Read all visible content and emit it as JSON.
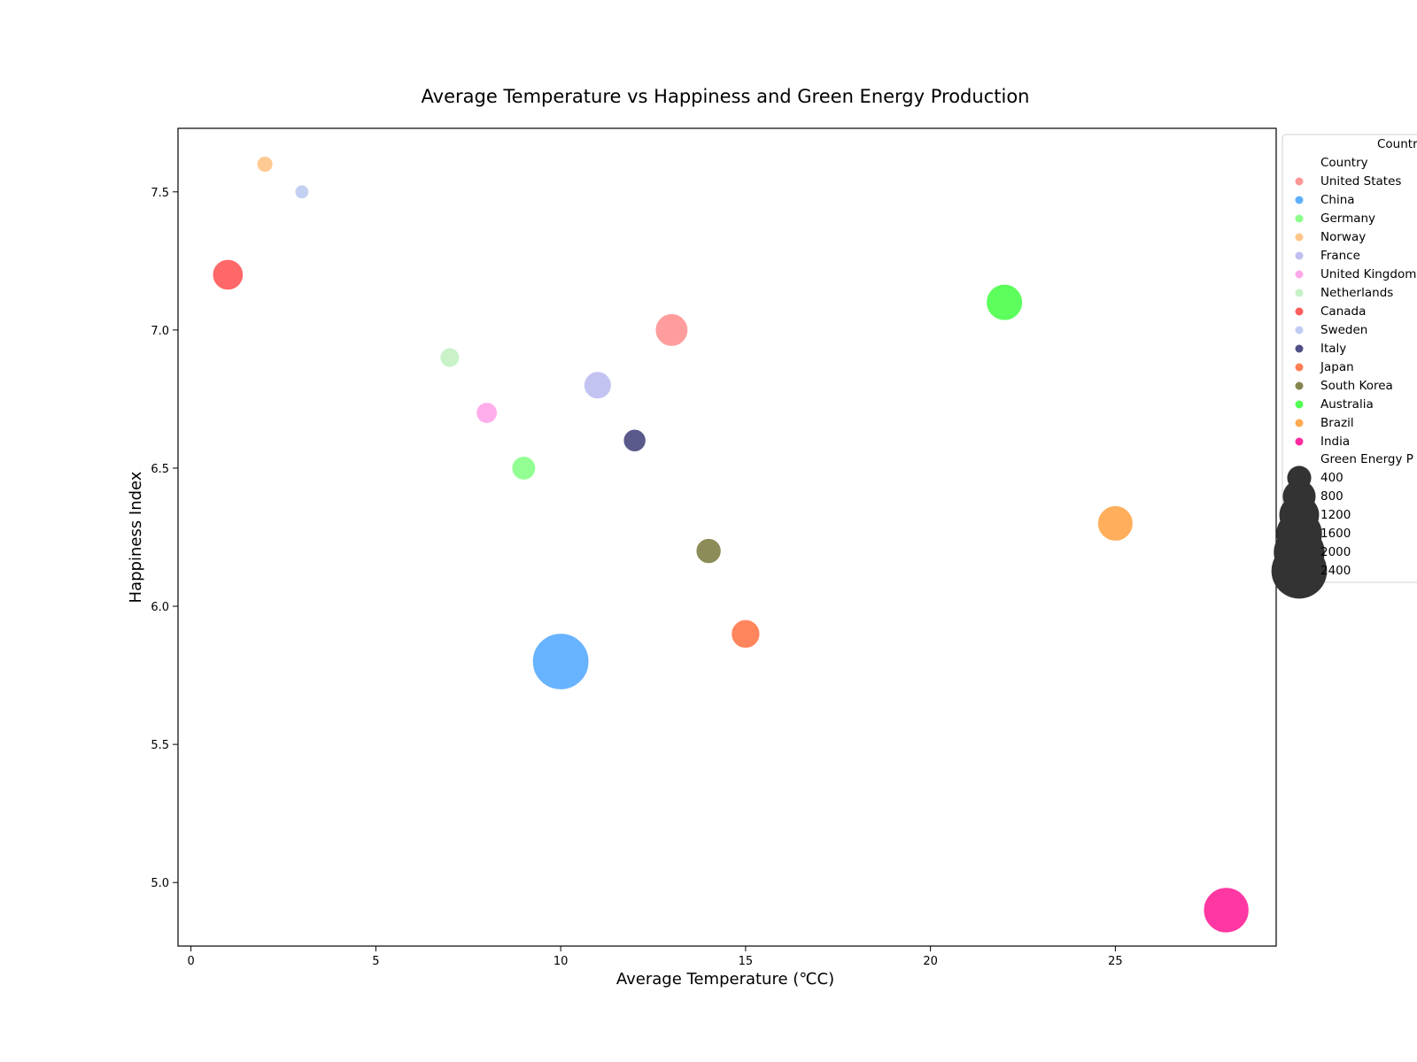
{
  "chart_data": {
    "type": "scatter",
    "title": "Average Temperature vs Happiness and Green Energy Production",
    "xlabel": "Average Temperature (℃C)",
    "ylabel": "Happiness Index",
    "xlim": [
      -0.35,
      29.35
    ],
    "ylim": [
      4.77,
      7.73
    ],
    "x_ticks": [
      0,
      5,
      10,
      15,
      20,
      25
    ],
    "y_ticks": [
      5.0,
      5.5,
      6.0,
      6.5,
      7.0,
      7.5
    ],
    "y_tick_labels": [
      "5.0",
      "5.5",
      "6.0",
      "6.5",
      "7.0",
      "7.5"
    ],
    "grid": false,
    "legend_position": "right-outside",
    "size_range_data": [
      100,
      2500
    ],
    "series": [
      {
        "name": "United States",
        "x": 13,
        "y": 7.0,
        "size": 800,
        "color": "#ff8c8c"
      },
      {
        "name": "China",
        "x": 10,
        "y": 5.8,
        "size": 2500,
        "color": "#4da6ff"
      },
      {
        "name": "Germany",
        "x": 9,
        "y": 6.5,
        "size": 400,
        "color": "#80ff80"
      },
      {
        "name": "Norway",
        "x": 2,
        "y": 7.6,
        "size": 150,
        "color": "#ffc080"
      },
      {
        "name": "France",
        "x": 11,
        "y": 6.8,
        "size": 550,
        "color": "#b8b8f0"
      },
      {
        "name": "United Kingdom",
        "x": 8,
        "y": 6.7,
        "size": 300,
        "color": "#ffa0e8"
      },
      {
        "name": "Netherlands",
        "x": 7,
        "y": 6.9,
        "size": 250,
        "color": "#bff0bf"
      },
      {
        "name": "Canada",
        "x": 1,
        "y": 7.2,
        "size": 700,
        "color": "#ff4d4d"
      },
      {
        "name": "Sweden",
        "x": 3,
        "y": 7.5,
        "size": 100,
        "color": "#b8c8f0"
      },
      {
        "name": "Italy",
        "x": 12,
        "y": 6.6,
        "size": 350,
        "color": "#3c3c78"
      },
      {
        "name": "Japan",
        "x": 15,
        "y": 5.9,
        "size": 600,
        "color": "#ff7040"
      },
      {
        "name": "South Korea",
        "x": 14,
        "y": 6.2,
        "size": 450,
        "color": "#78783c"
      },
      {
        "name": "Australia",
        "x": 22,
        "y": 7.1,
        "size": 1000,
        "color": "#40ff40"
      },
      {
        "name": "Brazil",
        "x": 25,
        "y": 6.3,
        "size": 950,
        "color": "#ffa040"
      },
      {
        "name": "India",
        "x": 28,
        "y": 4.9,
        "size": 1600,
        "color": "#ff1493"
      }
    ]
  },
  "legend": {
    "title": "Country",
    "hue_title": "Country",
    "size_title": "Green Energy P",
    "size_labels": [
      "400",
      "800",
      "1200",
      "1600",
      "2000",
      "2400"
    ],
    "size_values": [
      400,
      800,
      1200,
      1600,
      2000,
      2400
    ],
    "size_color": "#333333"
  }
}
